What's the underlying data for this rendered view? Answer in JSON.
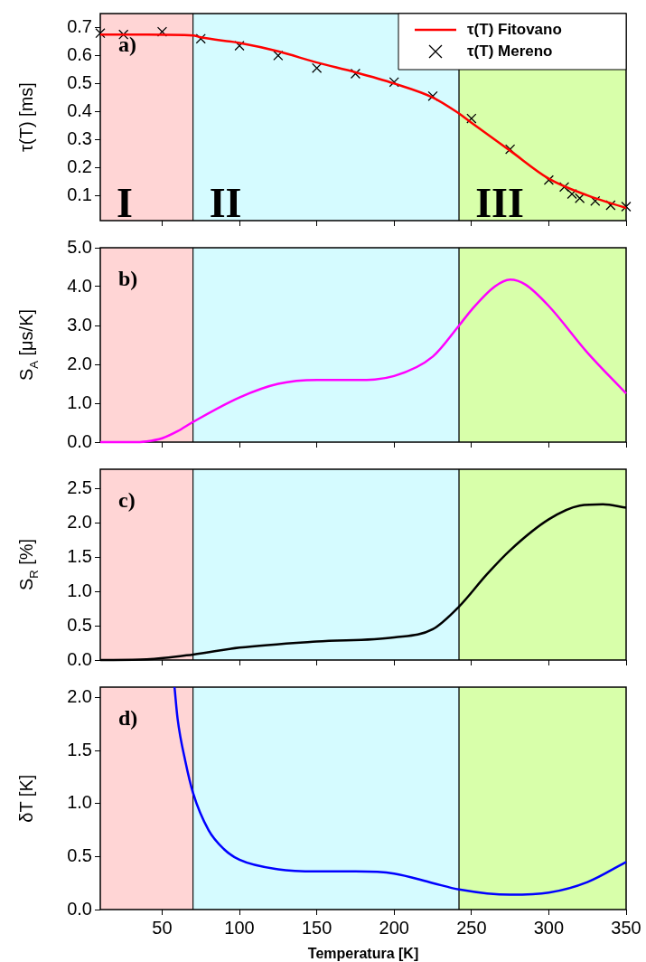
{
  "chart_data": [
    {
      "type": "line",
      "ylabel": "τ(T) [ms]",
      "annotations": [
        "a)"
      ],
      "xlim": [
        10,
        350
      ],
      "xticks": [
        50,
        100,
        150,
        200,
        250,
        300,
        350
      ],
      "ylim": [
        0.01,
        0.75
      ],
      "yticks": [
        0.1,
        0.2,
        0.3,
        0.4,
        0.5,
        0.6,
        0.7
      ],
      "tick_labels": "y",
      "grid": false,
      "legend": "top right",
      "bands": [
        {
          "axis": "x",
          "from": 10,
          "to": 70,
          "label": "I",
          "color": "#ffd5d5"
        },
        {
          "axis": "x",
          "from": 70,
          "to": 242,
          "label": "II",
          "color": "#d5fbff"
        },
        {
          "axis": "x",
          "from": 242,
          "to": 350,
          "label": "III",
          "color": "#d8ffaa"
        }
      ],
      "series": [
        {
          "name": "τ(T) Fitovano",
          "type": "line",
          "color": "#ff0000",
          "marker": "none",
          "x": [
            10,
            40,
            70,
            75,
            100,
            125,
            150,
            175,
            200,
            225,
            240,
            250,
            275,
            300,
            325,
            350
          ],
          "values": [
            0.675,
            0.675,
            0.672,
            0.665,
            0.645,
            0.615,
            0.575,
            0.54,
            0.5,
            0.45,
            0.4,
            0.36,
            0.26,
            0.16,
            0.1,
            0.055
          ]
        },
        {
          "name": "τ(T) Mereno",
          "type": "scatter",
          "color": "#000000",
          "marker": "cross",
          "x": [
            10,
            25,
            50,
            75,
            100,
            125,
            150,
            175,
            200,
            225,
            250,
            275,
            300,
            310,
            315,
            320,
            330,
            340,
            350
          ],
          "values": [
            0.68,
            0.675,
            0.685,
            0.66,
            0.635,
            0.6,
            0.555,
            0.535,
            0.505,
            0.455,
            0.375,
            0.265,
            0.155,
            0.13,
            0.105,
            0.09,
            0.08,
            0.065,
            0.06
          ]
        }
      ]
    },
    {
      "type": "line",
      "ylabel": "S$_{A}$ [μs/K]",
      "annotations": [
        "b)"
      ],
      "xlim": [
        10,
        350
      ],
      "xticks": [
        50,
        100,
        150,
        200,
        250,
        300,
        350
      ],
      "ylim": [
        0,
        5
      ],
      "yticks": [
        {
          "value": 0,
          "label": "0.0"
        },
        {
          "value": 1,
          "label": "1.0"
        },
        {
          "value": 2,
          "label": "2.0"
        },
        {
          "value": 3,
          "label": "3.0"
        },
        {
          "value": 4,
          "label": "4.0"
        },
        {
          "value": 5,
          "label": "5.0"
        }
      ],
      "tick_labels": "y",
      "grid": false,
      "bands": [
        {
          "axis": "x",
          "from": 10,
          "to": 70,
          "color": "#ffd5d5"
        },
        {
          "axis": "x",
          "from": 70,
          "to": 242,
          "color": "#d5fbff"
        },
        {
          "axis": "x",
          "from": 242,
          "to": 350,
          "color": "#d8ffaa"
        }
      ],
      "series": [
        {
          "color": "#ff00ff",
          "marker": "none",
          "x": [
            10,
            30,
            40,
            50,
            60,
            70,
            100,
            125,
            150,
            175,
            200,
            225,
            242,
            250,
            265,
            275,
            285,
            300,
            325,
            350
          ],
          "values": [
            0,
            0,
            0.02,
            0.1,
            0.28,
            0.52,
            1.15,
            1.5,
            1.6,
            1.6,
            1.7,
            2.2,
            3.0,
            3.4,
            4.0,
            4.18,
            4.05,
            3.5,
            2.3,
            1.25
          ]
        }
      ]
    },
    {
      "type": "line",
      "ylabel": "S$_{R}$ [%]",
      "annotations": [
        "c)"
      ],
      "xlim": [
        10,
        350
      ],
      "xticks": [
        50,
        100,
        150,
        200,
        250,
        300,
        350
      ],
      "ylim": [
        0,
        2.78
      ],
      "yticks": [
        {
          "value": 0,
          "label": "0.0"
        },
        0.5,
        {
          "value": 1,
          "label": "1.0"
        },
        1.5,
        {
          "value": 2,
          "label": "2.0"
        },
        2.5
      ],
      "tick_labels": "y",
      "grid": false,
      "bands": [
        {
          "axis": "x",
          "from": 10,
          "to": 70,
          "color": "#ffd5d5"
        },
        {
          "axis": "x",
          "from": 70,
          "to": 242,
          "color": "#d5fbff"
        },
        {
          "axis": "x",
          "from": 242,
          "to": 350,
          "color": "#d8ffaa"
        }
      ],
      "series": [
        {
          "color": "#000000",
          "marker": "none",
          "x": [
            10,
            40,
            70,
            100,
            150,
            200,
            225,
            242,
            260,
            275,
            300,
            320,
            335,
            350
          ],
          "values": [
            0,
            0.01,
            0.08,
            0.18,
            0.27,
            0.33,
            0.45,
            0.78,
            1.25,
            1.6,
            2.05,
            2.25,
            2.27,
            2.22
          ]
        }
      ]
    },
    {
      "type": "line",
      "xlabel": "Temperatura [K]",
      "ylabel": "δT [K]",
      "annotations": [
        "d)"
      ],
      "xlim": [
        10,
        350
      ],
      "xticks": [
        50,
        100,
        150,
        200,
        250,
        300,
        350
      ],
      "ylim": [
        0,
        2.1
      ],
      "yticks": [
        {
          "value": 0,
          "label": "0.0"
        },
        0.5,
        {
          "value": 1,
          "label": "1.0"
        },
        1.5,
        {
          "value": 2,
          "label": "2.0"
        }
      ],
      "grid": false,
      "bands": [
        {
          "axis": "x",
          "from": 10,
          "to": 70,
          "color": "#ffd5d5"
        },
        {
          "axis": "x",
          "from": 70,
          "to": 242,
          "color": "#d5fbff"
        },
        {
          "axis": "x",
          "from": 242,
          "to": 350,
          "color": "#d8ffaa"
        }
      ],
      "series": [
        {
          "color": "#0000ff",
          "marker": "none",
          "x": [
            58,
            60,
            65,
            70,
            80,
            90,
            100,
            125,
            150,
            175,
            200,
            225,
            242,
            275,
            300,
            325,
            350
          ],
          "values": [
            2.1,
            1.8,
            1.4,
            1.1,
            0.75,
            0.57,
            0.47,
            0.38,
            0.36,
            0.36,
            0.34,
            0.25,
            0.19,
            0.14,
            0.16,
            0.26,
            0.45
          ]
        }
      ]
    }
  ]
}
